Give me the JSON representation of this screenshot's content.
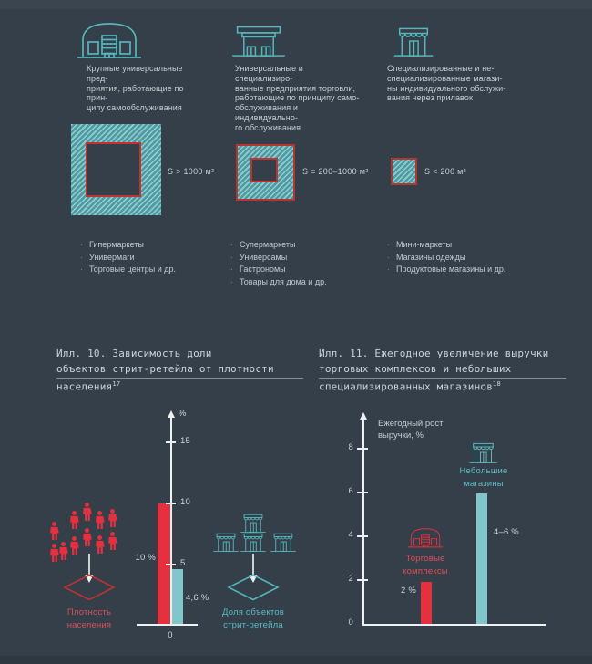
{
  "types": [
    {
      "icon": "hypermarket-building-icon",
      "description": "Крупные универсальные пред-\nприятия, работающие по прин-\nципу самообслуживания",
      "size_label": "S > 1000 м²",
      "examples": [
        "Гипермаркеты",
        "Универмаги",
        "Торговые центры и др."
      ]
    },
    {
      "icon": "supermarket-building-icon",
      "description": "Универсальные и специализиро-\nванные предприятия торговли,\nработающие по принципу само-\nобслуживания и индивидуально-\nго обслуживания",
      "size_label": "S = 200–1000 м²",
      "examples": [
        "Супермаркеты",
        "Универсамы",
        "Гастрономы",
        "Товары для дома и др."
      ]
    },
    {
      "icon": "counter-shop-building-icon",
      "description": "Специализированные и не-\nспециализированные магази-\nны индивидуального обслужи-\nвания через прилавок",
      "size_label": "S < 200 м²",
      "examples": [
        "Мини-маркеты",
        "Магазины одежды",
        "Продуктовые магазины и др."
      ]
    }
  ],
  "captions": [
    {
      "text": "Илл. 10. Зависимость доли\nобъектов стрит-ретейла от плотности\nнаселения",
      "footnote": "17"
    },
    {
      "text": "Илл. 11. Ежегодное увеличение выручки\nторговых комплексов и небольших\nспециализированных магазинов",
      "footnote": "18"
    }
  ],
  "chart_data": [
    {
      "type": "bar",
      "title": "Илл. 10. Зависимость доли объектов стрит-ретейла от плотности населения",
      "ylabel": "%",
      "ylim": [
        0,
        17
      ],
      "yticks": [
        "0",
        "5",
        "10",
        "15"
      ],
      "grid": false,
      "legend_position": "none",
      "series": [
        {
          "name": "Плотность\nнаселения",
          "value": 10,
          "label": "10 %",
          "color": "#e5303f"
        },
        {
          "name": "Доля объектов\nстрит-ретейла",
          "value": 4.6,
          "label": "4,6 %",
          "color": "#80c6ca"
        }
      ]
    },
    {
      "type": "bar",
      "title": "Илл. 11. Ежегодное увеличение выручки торговых комплексов и небольших специализированных магазинов",
      "ylabel": "Ежегодный рост\nвыручки, %",
      "ylim": [
        0,
        9.5
      ],
      "yticks": [
        "0",
        "2",
        "4",
        "6",
        "8"
      ],
      "grid": false,
      "legend_position": "none",
      "series": [
        {
          "name": "Торговые\nкомплексы",
          "value": 2,
          "label": "2 %",
          "color": "#e5303f"
        },
        {
          "name": "Небольшие\nмагазины",
          "value": 6,
          "label": "4–6 %",
          "color": "#80c6ca"
        }
      ]
    }
  ],
  "colors": {
    "background": "#353f49",
    "accent_red": "#e5303f",
    "accent_teal": "#55b6bb",
    "bar_teal": "#80c6ca",
    "text": "#c6cdd3",
    "axis": "#edf1f2",
    "hatch_light": "#93ced2",
    "hatch_dark": "#4f9aa1",
    "square_border_red": "#b7342f"
  }
}
